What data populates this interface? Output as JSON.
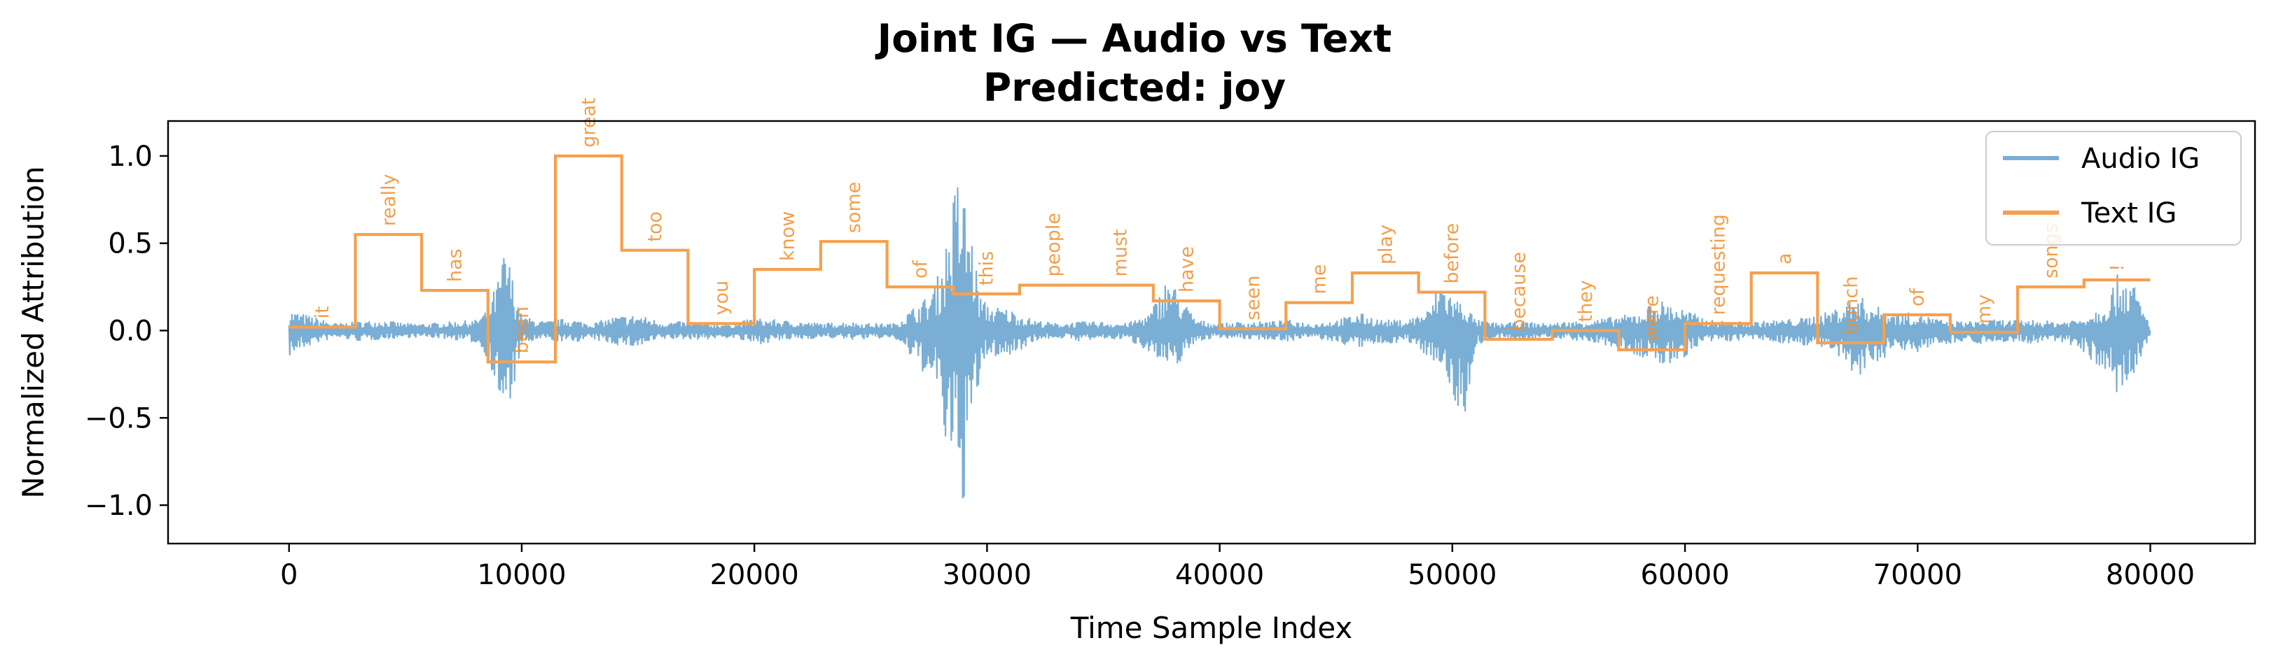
{
  "chart_data": {
    "type": "line",
    "title": "Joint IG — Audio vs Text",
    "subtitle": "Predicted: joy",
    "xlabel": "Time Sample Index",
    "ylabel": "Normalized Attribution",
    "xlim": [
      -5200,
      84500
    ],
    "ylim": [
      -1.22,
      1.2
    ],
    "xticks": [
      0,
      10000,
      20000,
      30000,
      40000,
      50000,
      60000,
      70000,
      80000
    ],
    "xtick_labels": [
      "0",
      "10000",
      "20000",
      "30000",
      "40000",
      "50000",
      "60000",
      "70000",
      "80000"
    ],
    "yticks": [
      1.0,
      0.5,
      0.0,
      -0.5,
      -1.0
    ],
    "ytick_labels": [
      "1.0",
      "0.5",
      "0.0",
      "−0.5",
      "−1.0"
    ],
    "legend_position": "top-right",
    "colors": {
      "audio": "#7aaed4",
      "text": "#f5a04f",
      "word": "#f28e2b"
    },
    "series": [
      {
        "name": "Audio IG",
        "kind": "signal_envelope",
        "envelope": [
          [
            0,
            0.12,
            -0.15
          ],
          [
            1000,
            0.08,
            -0.08
          ],
          [
            2000,
            0.04,
            -0.04
          ],
          [
            3000,
            0.05,
            -0.06
          ],
          [
            4000,
            0.06,
            -0.05
          ],
          [
            5000,
            0.04,
            -0.04
          ],
          [
            6000,
            0.04,
            -0.04
          ],
          [
            7000,
            0.05,
            -0.05
          ],
          [
            8000,
            0.06,
            -0.07
          ],
          [
            8500,
            0.12,
            -0.15
          ],
          [
            9000,
            0.3,
            -0.38
          ],
          [
            9300,
            0.5,
            -0.6
          ],
          [
            9700,
            0.25,
            -0.3
          ],
          [
            10000,
            0.08,
            -0.08
          ],
          [
            11000,
            0.05,
            -0.05
          ],
          [
            12000,
            0.07,
            -0.07
          ],
          [
            13000,
            0.04,
            -0.05
          ],
          [
            14000,
            0.08,
            -0.08
          ],
          [
            15000,
            0.09,
            -0.1
          ],
          [
            16000,
            0.05,
            -0.05
          ],
          [
            17000,
            0.05,
            -0.05
          ],
          [
            18000,
            0.04,
            -0.05
          ],
          [
            19000,
            0.04,
            -0.04
          ],
          [
            20000,
            0.07,
            -0.08
          ],
          [
            21000,
            0.06,
            -0.06
          ],
          [
            22000,
            0.05,
            -0.05
          ],
          [
            23000,
            0.04,
            -0.04
          ],
          [
            24000,
            0.05,
            -0.05
          ],
          [
            25000,
            0.04,
            -0.05
          ],
          [
            26000,
            0.04,
            -0.04
          ],
          [
            27000,
            0.15,
            -0.2
          ],
          [
            27500,
            0.2,
            -0.28
          ],
          [
            28000,
            0.35,
            -0.4
          ],
          [
            28300,
            0.55,
            -0.8
          ],
          [
            28700,
            0.9,
            -0.9
          ],
          [
            29000,
            0.8,
            -1.0
          ],
          [
            29300,
            0.6,
            -0.6
          ],
          [
            29700,
            0.2,
            -0.3
          ],
          [
            30000,
            0.15,
            -0.15
          ],
          [
            31000,
            0.12,
            -0.15
          ],
          [
            32000,
            0.06,
            -0.06
          ],
          [
            33000,
            0.04,
            -0.04
          ],
          [
            34000,
            0.05,
            -0.06
          ],
          [
            35000,
            0.05,
            -0.05
          ],
          [
            36000,
            0.04,
            -0.05
          ],
          [
            37000,
            0.1,
            -0.12
          ],
          [
            37800,
            0.32,
            -0.25
          ],
          [
            38300,
            0.2,
            -0.18
          ],
          [
            39000,
            0.06,
            -0.06
          ],
          [
            40000,
            0.04,
            -0.04
          ],
          [
            41000,
            0.05,
            -0.05
          ],
          [
            42000,
            0.05,
            -0.05
          ],
          [
            43000,
            0.06,
            -0.06
          ],
          [
            44000,
            0.04,
            -0.04
          ],
          [
            45000,
            0.06,
            -0.07
          ],
          [
            46000,
            0.1,
            -0.1
          ],
          [
            47000,
            0.06,
            -0.08
          ],
          [
            48000,
            0.06,
            -0.06
          ],
          [
            49000,
            0.12,
            -0.15
          ],
          [
            49500,
            0.3,
            -0.2
          ],
          [
            50000,
            0.2,
            -0.4
          ],
          [
            50600,
            0.15,
            -0.52
          ],
          [
            51000,
            0.06,
            -0.08
          ],
          [
            52000,
            0.04,
            -0.05
          ],
          [
            53000,
            0.05,
            -0.05
          ],
          [
            54000,
            0.04,
            -0.04
          ],
          [
            55000,
            0.05,
            -0.05
          ],
          [
            56000,
            0.06,
            -0.07
          ],
          [
            57000,
            0.08,
            -0.1
          ],
          [
            58000,
            0.1,
            -0.15
          ],
          [
            58800,
            0.18,
            -0.2
          ],
          [
            59500,
            0.15,
            -0.2
          ],
          [
            60000,
            0.12,
            -0.15
          ],
          [
            61000,
            0.06,
            -0.07
          ],
          [
            62000,
            0.05,
            -0.06
          ],
          [
            63000,
            0.05,
            -0.05
          ],
          [
            64000,
            0.06,
            -0.07
          ],
          [
            65000,
            0.07,
            -0.08
          ],
          [
            66000,
            0.1,
            -0.1
          ],
          [
            66800,
            0.15,
            -0.2
          ],
          [
            67500,
            0.2,
            -0.3
          ],
          [
            68000,
            0.15,
            -0.2
          ],
          [
            69000,
            0.1,
            -0.12
          ],
          [
            70000,
            0.1,
            -0.12
          ],
          [
            71000,
            0.06,
            -0.08
          ],
          [
            72000,
            0.05,
            -0.06
          ],
          [
            73000,
            0.06,
            -0.08
          ],
          [
            74000,
            0.06,
            -0.06
          ],
          [
            75000,
            0.06,
            -0.08
          ],
          [
            76000,
            0.05,
            -0.06
          ],
          [
            77000,
            0.07,
            -0.1
          ],
          [
            78000,
            0.15,
            -0.25
          ],
          [
            78700,
            0.35,
            -0.4
          ],
          [
            79200,
            0.3,
            -0.32
          ],
          [
            79700,
            0.12,
            -0.15
          ],
          [
            80000,
            0.03,
            -0.03
          ]
        ]
      },
      {
        "name": "Text IG",
        "kind": "step",
        "segments": [
          {
            "start": 0,
            "end": 2850,
            "value": 0.02,
            "word": "it"
          },
          {
            "start": 2850,
            "end": 5700,
            "value": 0.55,
            "word": "really"
          },
          {
            "start": 5700,
            "end": 8550,
            "value": 0.23,
            "word": "has"
          },
          {
            "start": 8550,
            "end": 11450,
            "value": -0.18,
            "word": "been"
          },
          {
            "start": 11450,
            "end": 14300,
            "value": 1.0,
            "word": "great"
          },
          {
            "start": 14300,
            "end": 17150,
            "value": 0.46,
            "word": "too"
          },
          {
            "start": 17150,
            "end": 20000,
            "value": 0.04,
            "word": "you"
          },
          {
            "start": 20000,
            "end": 22850,
            "value": 0.35,
            "word": "know"
          },
          {
            "start": 22850,
            "end": 25700,
            "value": 0.51,
            "word": "some"
          },
          {
            "start": 25700,
            "end": 28550,
            "value": 0.25,
            "word": "of"
          },
          {
            "start": 28550,
            "end": 31400,
            "value": 0.21,
            "word": "this"
          },
          {
            "start": 31400,
            "end": 34300,
            "value": 0.26,
            "word": "people"
          },
          {
            "start": 34300,
            "end": 37150,
            "value": 0.26,
            "word": "must"
          },
          {
            "start": 37150,
            "end": 40000,
            "value": 0.17,
            "word": "have"
          },
          {
            "start": 40000,
            "end": 42850,
            "value": 0.01,
            "word": "seen"
          },
          {
            "start": 42850,
            "end": 45700,
            "value": 0.16,
            "word": "me"
          },
          {
            "start": 45700,
            "end": 48550,
            "value": 0.33,
            "word": "play"
          },
          {
            "start": 48550,
            "end": 51400,
            "value": 0.22,
            "word": "before"
          },
          {
            "start": 51400,
            "end": 54300,
            "value": -0.05,
            "word": "because"
          },
          {
            "start": 54300,
            "end": 57150,
            "value": 0.0,
            "word": "they"
          },
          {
            "start": 57150,
            "end": 60000,
            "value": -0.11,
            "word": "were"
          },
          {
            "start": 60000,
            "end": 62850,
            "value": 0.04,
            "word": "requesting"
          },
          {
            "start": 62850,
            "end": 65700,
            "value": 0.33,
            "word": "a"
          },
          {
            "start": 65700,
            "end": 68550,
            "value": -0.07,
            "word": "bunch"
          },
          {
            "start": 68550,
            "end": 71400,
            "value": 0.09,
            "word": "of"
          },
          {
            "start": 71400,
            "end": 74300,
            "value": -0.01,
            "word": "my"
          },
          {
            "start": 74300,
            "end": 77150,
            "value": 0.25,
            "word": "songs"
          },
          {
            "start": 77150,
            "end": 80000,
            "value": 0.29,
            "word": "!"
          }
        ]
      }
    ]
  }
}
